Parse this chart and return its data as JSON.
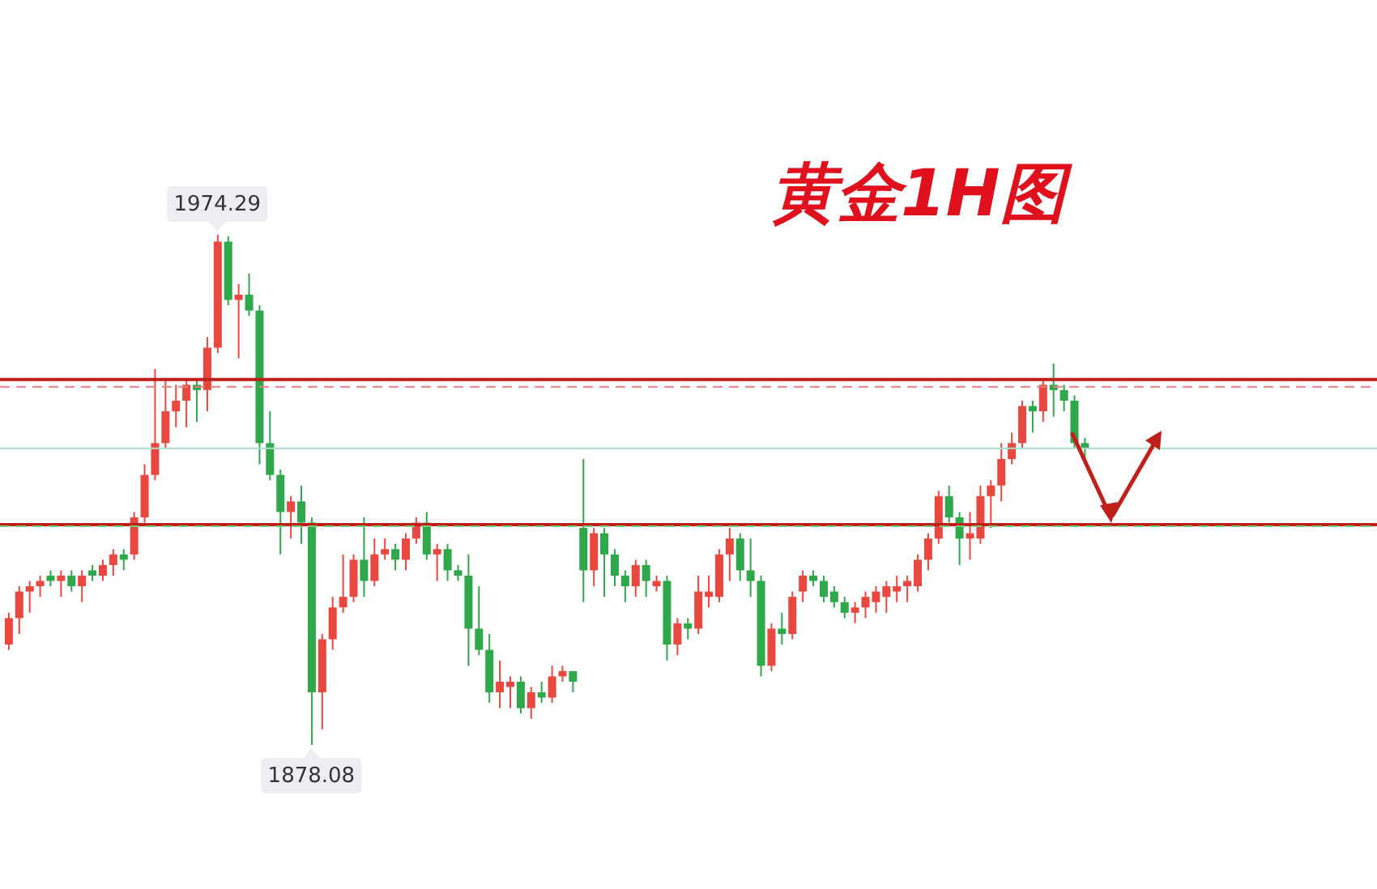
{
  "chart_data": {
    "type": "candlestick",
    "title": "黄金1H图",
    "categories": [
      null,
      null,
      null,
      null,
      null,
      null,
      null,
      null,
      null,
      null,
      null,
      null,
      null,
      null,
      null,
      null,
      null,
      null,
      null,
      null,
      null,
      null,
      null,
      null,
      null,
      null,
      null,
      null,
      null,
      null,
      null,
      null,
      null,
      null,
      null,
      null,
      null,
      null,
      null,
      null,
      null,
      null,
      null,
      null,
      null,
      null,
      null,
      null,
      null,
      null,
      null,
      null,
      null,
      null,
      null,
      null,
      null,
      null,
      null,
      null,
      null,
      null,
      null,
      null,
      null,
      null,
      null,
      null,
      null,
      null,
      null,
      null,
      null,
      null,
      null,
      null,
      null,
      null,
      null,
      null,
      null,
      null,
      null,
      null,
      null,
      null,
      null,
      null,
      null,
      null,
      null,
      null,
      null,
      null,
      null,
      null,
      null,
      null,
      null,
      null,
      null,
      null,
      null,
      null
    ],
    "ohlc": [
      [
        1897,
        1903,
        1896,
        1902
      ],
      [
        1902,
        1908,
        1899,
        1907
      ],
      [
        1907,
        1909,
        1903,
        1908
      ],
      [
        1908,
        1910,
        1906,
        1909
      ],
      [
        1910,
        1911,
        1908,
        1909
      ],
      [
        1909,
        1911,
        1906,
        1910
      ],
      [
        1910,
        1911,
        1907,
        1908
      ],
      [
        1908,
        1911,
        1905,
        1910
      ],
      [
        1911,
        1912,
        1909,
        1910
      ],
      [
        1910,
        1913,
        1909,
        1912
      ],
      [
        1912,
        1915,
        1910,
        1914
      ],
      [
        1914,
        1915,
        1911,
        1913
      ],
      [
        1914,
        1922,
        1913,
        1921
      ],
      [
        1921,
        1931,
        1920,
        1929
      ],
      [
        1929,
        1949,
        1928,
        1935
      ],
      [
        1935,
        1947,
        1934,
        1941
      ],
      [
        1941,
        1946,
        1938,
        1943
      ],
      [
        1943,
        1947,
        1938,
        1946
      ],
      [
        1946,
        1947,
        1939,
        1945
      ],
      [
        1945,
        1955,
        1941,
        1953
      ],
      [
        1953,
        1974.29,
        1952,
        1973
      ],
      [
        1973,
        1974,
        1961,
        1962
      ],
      [
        1962,
        1965,
        1951,
        1963
      ],
      [
        1963,
        1967,
        1959,
        1960
      ],
      [
        1960,
        1961,
        1931,
        1935
      ],
      [
        1935,
        1941,
        1928,
        1929
      ],
      [
        1929,
        1930,
        1914,
        1922
      ],
      [
        1922,
        1925,
        1917,
        1924
      ],
      [
        1924,
        1927,
        1916,
        1920
      ],
      [
        1920,
        1921,
        1878.08,
        1888
      ],
      [
        1888,
        1899,
        1881,
        1898
      ],
      [
        1898,
        1906,
        1896,
        1904
      ],
      [
        1904,
        1914,
        1903,
        1906
      ],
      [
        1906,
        1914,
        1905,
        1913
      ],
      [
        1913,
        1921,
        1906,
        1909
      ],
      [
        1909,
        1917,
        1908,
        1914
      ],
      [
        1914,
        1917,
        1913,
        1915
      ],
      [
        1915,
        1916,
        1911,
        1913
      ],
      [
        1913,
        1918,
        1911,
        1917
      ],
      [
        1917,
        1921,
        1916,
        1920
      ],
      [
        1920,
        1922,
        1913,
        1914
      ],
      [
        1914,
        1916,
        1909,
        1915
      ],
      [
        1915,
        1916,
        1909,
        1911
      ],
      [
        1911,
        1912,
        1909,
        1910
      ],
      [
        1910,
        1914,
        1893,
        1900
      ],
      [
        1900,
        1908,
        1895,
        1896
      ],
      [
        1896,
        1899,
        1886,
        1888
      ],
      [
        1888,
        1894,
        1885,
        1890
      ],
      [
        1889,
        1891,
        1885,
        1890
      ],
      [
        1890,
        1891,
        1884,
        1885
      ],
      [
        1885,
        1889,
        1883,
        1888
      ],
      [
        1888,
        1890,
        1886,
        1887
      ],
      [
        1887,
        1893,
        1886,
        1891
      ],
      [
        1891,
        1893,
        1890,
        1892
      ],
      [
        1892,
        1892,
        1888,
        1890
      ],
      [
        1919,
        1932,
        1905,
        1911
      ],
      [
        1911,
        1919,
        1908,
        1918
      ],
      [
        1918,
        1919,
        1906,
        1914
      ],
      [
        1914,
        1915,
        1908,
        1910
      ],
      [
        1910,
        1911,
        1905,
        1908
      ],
      [
        1908,
        1913,
        1906,
        1912
      ],
      [
        1912,
        1913,
        1906,
        1909
      ],
      [
        1908,
        1910,
        1907,
        1909
      ],
      [
        1909,
        1910,
        1894,
        1897
      ],
      [
        1897,
        1902,
        1895,
        1901
      ],
      [
        1901,
        1902,
        1898,
        1900
      ],
      [
        1900,
        1910,
        1899,
        1907
      ],
      [
        1906,
        1910,
        1904,
        1907
      ],
      [
        1906,
        1915,
        1905,
        1914
      ],
      [
        1914,
        1919,
        1909,
        1917
      ],
      [
        1917,
        1918,
        1909,
        1911
      ],
      [
        1911,
        1917,
        1906,
        1909
      ],
      [
        1909,
        1910,
        1891,
        1893
      ],
      [
        1893,
        1901,
        1892,
        1900
      ],
      [
        1900,
        1903,
        1897,
        1899
      ],
      [
        1899,
        1907,
        1898,
        1906
      ],
      [
        1907,
        1911,
        1905,
        1910
      ],
      [
        1910,
        1911,
        1908,
        1909
      ],
      [
        1909,
        1910,
        1905,
        1906
      ],
      [
        1907,
        1908,
        1904,
        1905
      ],
      [
        1905,
        1906,
        1902,
        1903
      ],
      [
        1903,
        1905,
        1901,
        1904
      ],
      [
        1904,
        1907,
        1902,
        1906
      ],
      [
        1905,
        1908,
        1903,
        1907
      ],
      [
        1906,
        1909,
        1903,
        1908
      ],
      [
        1907,
        1910,
        1905,
        1908
      ],
      [
        1908,
        1910,
        1905,
        1909
      ],
      [
        1908,
        1914,
        1907,
        1913
      ],
      [
        1913,
        1918,
        1911,
        1917
      ],
      [
        1917,
        1926,
        1916,
        1925
      ],
      [
        1925,
        1927,
        1920,
        1921
      ],
      [
        1921,
        1922,
        1912,
        1917
      ],
      [
        1917,
        1922,
        1913,
        1918
      ],
      [
        1917,
        1927,
        1916,
        1925
      ],
      [
        1925,
        1928,
        1919,
        1927
      ],
      [
        1927,
        1935,
        1924,
        1932
      ],
      [
        1932,
        1937,
        1931,
        1935
      ],
      [
        1935,
        1943,
        1934,
        1942
      ],
      [
        1942,
        1943,
        1937,
        1941
      ],
      [
        1941,
        1947,
        1939,
        1946
      ],
      [
        1946,
        1950,
        1940,
        1945
      ],
      [
        1945,
        1946,
        1941,
        1943
      ],
      [
        1943,
        1944,
        1934,
        1935
      ],
      [
        1935,
        1936,
        1932,
        1934
      ]
    ],
    "colors": [
      "#e8483f",
      "#e8483f",
      "#e8483f",
      "#e8483f",
      "#2ea84a",
      "#e8483f",
      "#2ea84a",
      "#e8483f",
      "#2ea84a",
      "#e8483f",
      "#e8483f",
      "#2ea84a",
      "#e8483f",
      "#e8483f",
      "#e8483f",
      "#e8483f",
      "#e8483f",
      "#e8483f",
      "#2ea84a",
      "#e8483f",
      "#e8483f",
      "#2ea84a",
      "#e8483f",
      "#2ea84a",
      "#2ea84a",
      "#2ea84a",
      "#2ea84a",
      "#e8483f",
      "#2ea84a",
      "#2ea84a",
      "#e8483f",
      "#e8483f",
      "#e8483f",
      "#e8483f",
      "#2ea84a",
      "#e8483f",
      "#e8483f",
      "#2ea84a",
      "#e8483f",
      "#e8483f",
      "#2ea84a",
      "#e8483f",
      "#2ea84a",
      "#2ea84a",
      "#2ea84a",
      "#2ea84a",
      "#2ea84a",
      "#e8483f",
      "#e8483f",
      "#2ea84a",
      "#e8483f",
      "#2ea84a",
      "#e8483f",
      "#e8483f",
      "#2ea84a",
      "#2ea84a",
      "#e8483f",
      "#2ea84a",
      "#2ea84a",
      "#2ea84a",
      "#e8483f",
      "#2ea84a",
      "#e8483f",
      "#2ea84a",
      "#e8483f",
      "#2ea84a",
      "#e8483f",
      "#e8483f",
      "#e8483f",
      "#e8483f",
      "#2ea84a",
      "#2ea84a",
      "#2ea84a",
      "#e8483f",
      "#2ea84a",
      "#e8483f",
      "#e8483f",
      "#2ea84a",
      "#2ea84a",
      "#2ea84a",
      "#2ea84a",
      "#e8483f",
      "#e8483f",
      "#e8483f",
      "#e8483f",
      "#e8483f",
      "#e8483f",
      "#e8483f",
      "#e8483f",
      "#e8483f",
      "#2ea84a",
      "#2ea84a",
      "#e8483f",
      "#e8483f",
      "#e8483f",
      "#e8483f",
      "#e8483f",
      "#e8483f",
      "#2ea84a",
      "#e8483f",
      "#2ea84a",
      "#2ea84a",
      "#2ea84a",
      "#2ea84a"
    ],
    "ref_lines": [
      {
        "axis": "y",
        "value": 1947,
        "color": "#c0201a",
        "line_style": "solid"
      },
      {
        "axis": "y",
        "value": 1945.6,
        "color": "#e88080",
        "line_style": "dashed"
      },
      {
        "axis": "y",
        "value": 1934,
        "color": "#a8dcc8",
        "line_style": "solid"
      },
      {
        "axis": "y",
        "value": 1919.6,
        "color": "#c0201a",
        "line_style": "solid"
      },
      {
        "axis": "y",
        "value": 1919.3,
        "color": "#77cc77",
        "line_style": "dashed"
      }
    ],
    "annotations": [
      {
        "text": "1974.29",
        "y": 1974.29
      },
      {
        "text": "1878.08",
        "y": 1878.08
      }
    ]
  }
}
